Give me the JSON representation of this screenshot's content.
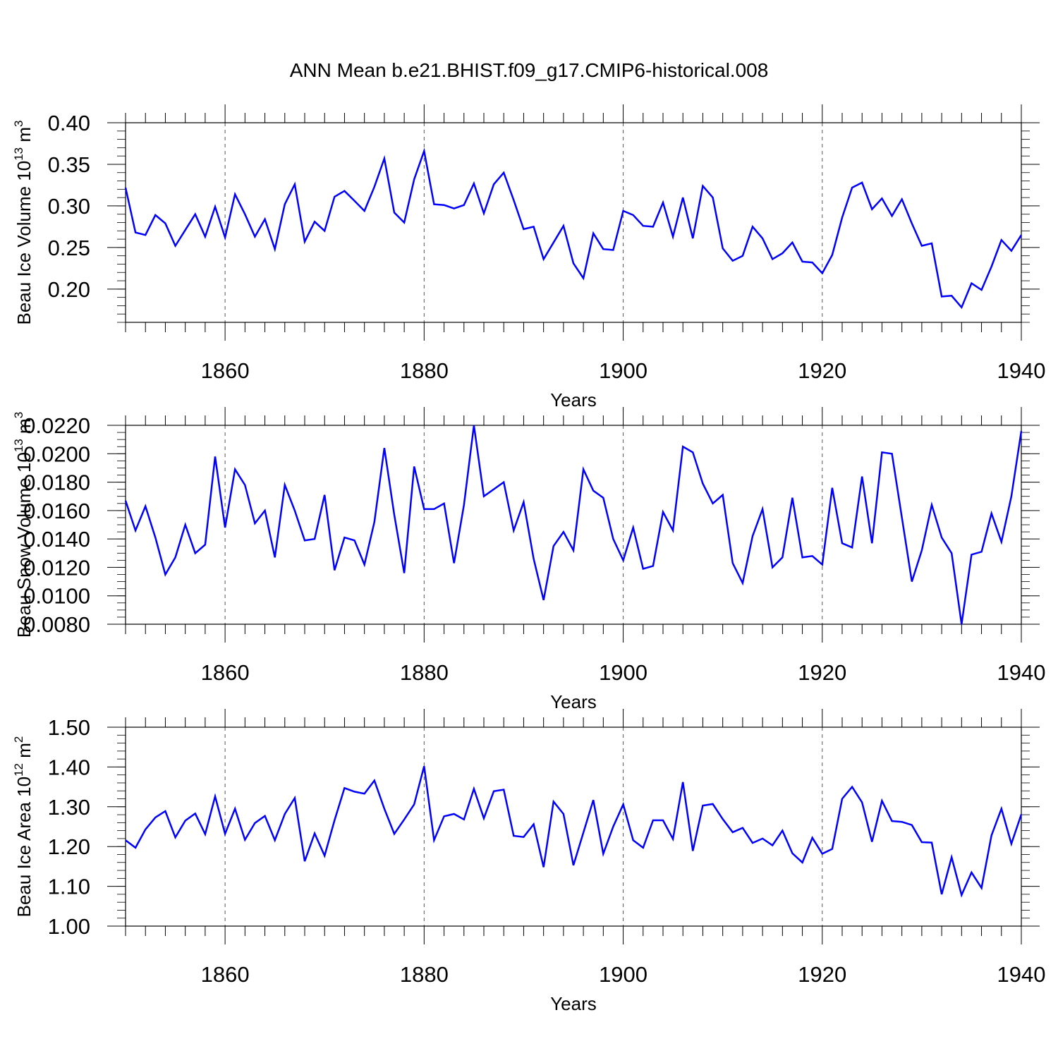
{
  "figure": {
    "title": "ANN Mean b.e21.BHIST.f09_g17.CMIP6-historical.008"
  },
  "colors": {
    "line": "#0000ff",
    "axis": "#000000",
    "grid": "#555555"
  },
  "chart_data": [
    {
      "type": "line",
      "xlabel": "Years",
      "ylabel": "Beau Ice Volume 10",
      "ylabel_exp": "13",
      "ylabel_unit": " m",
      "ylabel_unit_exp": "3",
      "xlim": [
        1850,
        1940
      ],
      "ylim": [
        0.16,
        0.4
      ],
      "xticks": [
        1860,
        1880,
        1900,
        1920,
        1940
      ],
      "xtick_labels": [
        "1860",
        "1880",
        "1900",
        "1920",
        "1940"
      ],
      "yticks": [
        0.2,
        0.25,
        0.3,
        0.35,
        0.4
      ],
      "ytick_labels": [
        "0.20",
        "0.25",
        "0.30",
        "0.35",
        "0.40"
      ],
      "y_minor_step": 0.01,
      "grid": "dashed vertical at major x ticks",
      "x_start": 1850,
      "series": [
        {
          "values": [
            0.322,
            0.268,
            0.265,
            0.289,
            0.279,
            0.252,
            0.271,
            0.29,
            0.263,
            0.299,
            0.262,
            0.314,
            0.29,
            0.263,
            0.284,
            0.248,
            0.302,
            0.326,
            0.257,
            0.281,
            0.27,
            0.311,
            0.318,
            0.306,
            0.294,
            0.323,
            0.357,
            0.292,
            0.28,
            0.332,
            0.366,
            0.302,
            0.301,
            0.297,
            0.301,
            0.327,
            0.291,
            0.326,
            0.34,
            0.307,
            0.272,
            0.275,
            0.236,
            0.256,
            0.276,
            0.231,
            0.213,
            0.267,
            0.248,
            0.247,
            0.294,
            0.289,
            0.276,
            0.275,
            0.304,
            0.263,
            0.31,
            0.261,
            0.324,
            0.31,
            0.249,
            0.234,
            0.24,
            0.275,
            0.261,
            0.236,
            0.243,
            0.256,
            0.233,
            0.232,
            0.219,
            0.241,
            0.286,
            0.322,
            0.328,
            0.296,
            0.309,
            0.288,
            0.308,
            0.279,
            0.252,
            0.255,
            0.191,
            0.192,
            0.178,
            0.207,
            0.199,
            0.227,
            0.259,
            0.246,
            0.265
          ]
        }
      ]
    },
    {
      "type": "line",
      "xlabel": "Years",
      "ylabel": "Beau Snow Volume 10",
      "ylabel_exp": "13",
      "ylabel_unit": " m",
      "ylabel_unit_exp": "3",
      "xlim": [
        1850,
        1940
      ],
      "ylim": [
        0.008,
        0.022
      ],
      "xticks": [
        1860,
        1880,
        1900,
        1920,
        1940
      ],
      "xtick_labels": [
        "1860",
        "1880",
        "1900",
        "1920",
        "1940"
      ],
      "yticks": [
        0.008,
        0.01,
        0.012,
        0.014,
        0.016,
        0.018,
        0.02,
        0.022
      ],
      "ytick_labels": [
        "0.0080",
        "0.0100",
        "0.0120",
        "0.0140",
        "0.0160",
        "0.0180",
        "0.0200",
        "0.0220"
      ],
      "y_minor_step": 0.0005,
      "grid": "dashed vertical at major x ticks",
      "x_start": 1850,
      "series": [
        {
          "values": [
            0.0167,
            0.0146,
            0.0163,
            0.0141,
            0.0115,
            0.0127,
            0.015,
            0.013,
            0.0136,
            0.0198,
            0.0148,
            0.0189,
            0.0178,
            0.0151,
            0.016,
            0.0127,
            0.0178,
            0.016,
            0.0139,
            0.014,
            0.0171,
            0.0118,
            0.0141,
            0.0139,
            0.0122,
            0.0152,
            0.0204,
            0.0157,
            0.0116,
            0.0191,
            0.0161,
            0.0161,
            0.0165,
            0.0123,
            0.0164,
            0.022,
            0.017,
            0.0175,
            0.018,
            0.0146,
            0.0166,
            0.0126,
            0.0097,
            0.0135,
            0.0145,
            0.0132,
            0.0189,
            0.0174,
            0.0169,
            0.014,
            0.0125,
            0.0148,
            0.0119,
            0.0121,
            0.0159,
            0.0146,
            0.0205,
            0.0201,
            0.0179,
            0.0165,
            0.0171,
            0.0123,
            0.0109,
            0.0142,
            0.0161,
            0.012,
            0.0127,
            0.0169,
            0.0127,
            0.0128,
            0.0122,
            0.0176,
            0.0137,
            0.0134,
            0.0184,
            0.0137,
            0.0201,
            0.02,
            0.0155,
            0.011,
            0.0132,
            0.0164,
            0.0141,
            0.013,
            0.008,
            0.0129,
            0.0131,
            0.0158,
            0.0138,
            0.017,
            0.0216
          ]
        }
      ]
    },
    {
      "type": "line",
      "xlabel": "Years",
      "ylabel": "Beau Ice Area 10",
      "ylabel_exp": "12",
      "ylabel_unit": " m",
      "ylabel_unit_exp": "2",
      "xlim": [
        1850,
        1940
      ],
      "ylim": [
        1.0,
        1.5
      ],
      "xticks": [
        1860,
        1880,
        1900,
        1920,
        1940
      ],
      "xtick_labels": [
        "1860",
        "1880",
        "1900",
        "1920",
        "1940"
      ],
      "yticks": [
        1.0,
        1.1,
        1.2,
        1.3,
        1.4,
        1.5
      ],
      "ytick_labels": [
        "1.00",
        "1.10",
        "1.20",
        "1.30",
        "1.40",
        "1.50"
      ],
      "y_minor_step": 0.02,
      "grid": "dashed vertical at major x ticks",
      "x_start": 1850,
      "series": [
        {
          "values": [
            1.216,
            1.197,
            1.243,
            1.273,
            1.289,
            1.223,
            1.265,
            1.283,
            1.231,
            1.326,
            1.232,
            1.295,
            1.217,
            1.259,
            1.277,
            1.216,
            1.282,
            1.322,
            1.163,
            1.233,
            1.177,
            1.266,
            1.347,
            1.338,
            1.333,
            1.366,
            1.295,
            1.232,
            1.268,
            1.306,
            1.402,
            1.216,
            1.276,
            1.282,
            1.268,
            1.345,
            1.271,
            1.339,
            1.343,
            1.227,
            1.224,
            1.256,
            1.148,
            1.313,
            1.282,
            1.153,
            1.235,
            1.317,
            1.182,
            1.25,
            1.306,
            1.216,
            1.197,
            1.266,
            1.266,
            1.219,
            1.362,
            1.189,
            1.303,
            1.307,
            1.269,
            1.236,
            1.247,
            1.209,
            1.22,
            1.203,
            1.24,
            1.183,
            1.16,
            1.222,
            1.182,
            1.194,
            1.32,
            1.35,
            1.311,
            1.212,
            1.315,
            1.264,
            1.262,
            1.254,
            1.211,
            1.21,
            1.08,
            1.173,
            1.078,
            1.135,
            1.096,
            1.228,
            1.295,
            1.207,
            1.281
          ]
        }
      ]
    }
  ]
}
